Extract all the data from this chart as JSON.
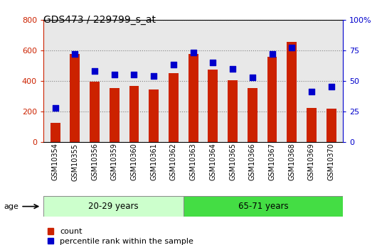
{
  "title": "GDS473 / 229799_s_at",
  "samples": [
    "GSM10354",
    "GSM10355",
    "GSM10356",
    "GSM10359",
    "GSM10360",
    "GSM10361",
    "GSM10362",
    "GSM10363",
    "GSM10364",
    "GSM10365",
    "GSM10366",
    "GSM10367",
    "GSM10368",
    "GSM10369",
    "GSM10370"
  ],
  "counts": [
    125,
    575,
    395,
    355,
    365,
    345,
    450,
    575,
    475,
    405,
    355,
    555,
    655,
    225,
    220
  ],
  "percentiles": [
    28,
    72,
    58,
    55,
    55,
    54,
    63,
    73,
    65,
    60,
    53,
    72,
    77,
    41,
    45
  ],
  "group1_label": "20-29 years",
  "group2_label": "65-71 years",
  "group1_count": 7,
  "group2_count": 8,
  "bar_color": "#cc2200",
  "dot_color": "#0000cc",
  "group1_bg": "#ccffcc",
  "group2_bg": "#44dd44",
  "left_ylim": [
    0,
    800
  ],
  "right_ylim": [
    0,
    100
  ],
  "left_yticks": [
    0,
    200,
    400,
    600,
    800
  ],
  "right_yticks": [
    0,
    25,
    50,
    75,
    100
  ],
  "right_yticklabels": [
    "0",
    "25",
    "50",
    "75",
    "100%"
  ],
  "legend_count_label": "count",
  "legend_pct_label": "percentile rank within the sample",
  "age_label": "age",
  "plot_bg": "#e8e8e8",
  "fig_bg": "#ffffff"
}
